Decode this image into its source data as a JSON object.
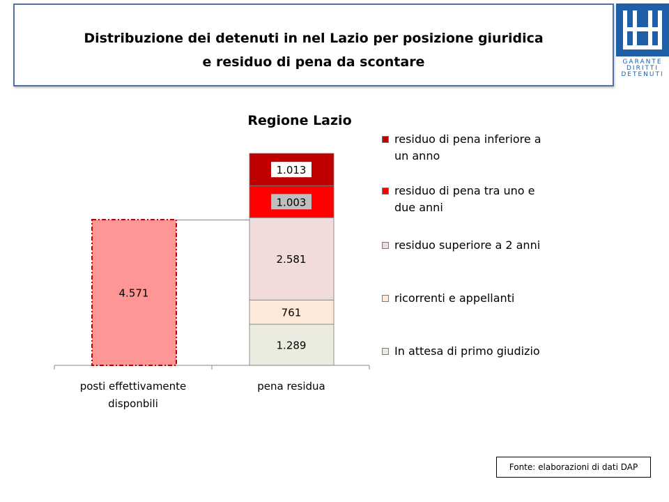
{
  "header": {
    "title_line1": "Distribuzione dei detenuti in nel Lazio per posizione giuridica",
    "title_line2": "e residuo di pena da scontare",
    "logo_text_lines": [
      "GARANTE",
      "DIRITTI",
      "DETENUTI"
    ]
  },
  "colors": {
    "posti": "#ff9696",
    "posti_border": "#c00000",
    "inferiore": "#c00000",
    "tra_uno_due": "#ff0000",
    "superiore": "#f2dcdb",
    "ricorrenti": "#fde9d9",
    "attesa": "#ebebe0",
    "title_border": "#4f71a8",
    "logo": "#1f5fa8"
  },
  "chart_data": {
    "type": "bar",
    "title": "Regione Lazio",
    "categories": [
      "posti effettivamente disponbili",
      "pena residua"
    ],
    "category_lines": [
      [
        "posti effettivamente",
        "disponbili"
      ],
      [
        "pena residua"
      ]
    ],
    "bars": [
      {
        "category": "posti effettivamente disponbili",
        "value": 4571,
        "value_label": "4.571"
      },
      {
        "category": "pena residua",
        "stack": [
          {
            "name": "In attesa di primo giudizio",
            "value": 1289,
            "value_label": "1.289",
            "color_key": "attesa"
          },
          {
            "name": "ricorrenti e appellanti",
            "value": 761,
            "value_label": "761",
            "color_key": "ricorrenti"
          },
          {
            "name": "residuo superiore a 2 anni",
            "value": 2581,
            "value_label": "2.581",
            "color_key": "superiore"
          },
          {
            "name": "residuo di pena tra uno e due anni",
            "value": 1003,
            "value_label": "1.003",
            "color_key": "tra_uno_due"
          },
          {
            "name": "residuo di pena inferiore a un anno",
            "value": 1013,
            "value_label": "1.013",
            "color_key": "inferiore"
          }
        ]
      }
    ],
    "legend": [
      {
        "label": "residuo di pena inferiore a un anno",
        "color_key": "inferiore"
      },
      {
        "label": "residuo di pena tra uno e due anni",
        "color_key": "tra_uno_due"
      },
      {
        "label": "residuo superiore a 2 anni",
        "color_key": "superiore"
      },
      {
        "label": "ricorrenti e appellanti",
        "color_key": "ricorrenti"
      },
      {
        "label": "In attesa di primo giudizio",
        "color_key": "attesa"
      }
    ],
    "legend_position": "right",
    "grid": false,
    "ylim": [
      0,
      6647
    ]
  },
  "footer": {
    "source": "Fonte: elaborazioni di dati DAP"
  }
}
